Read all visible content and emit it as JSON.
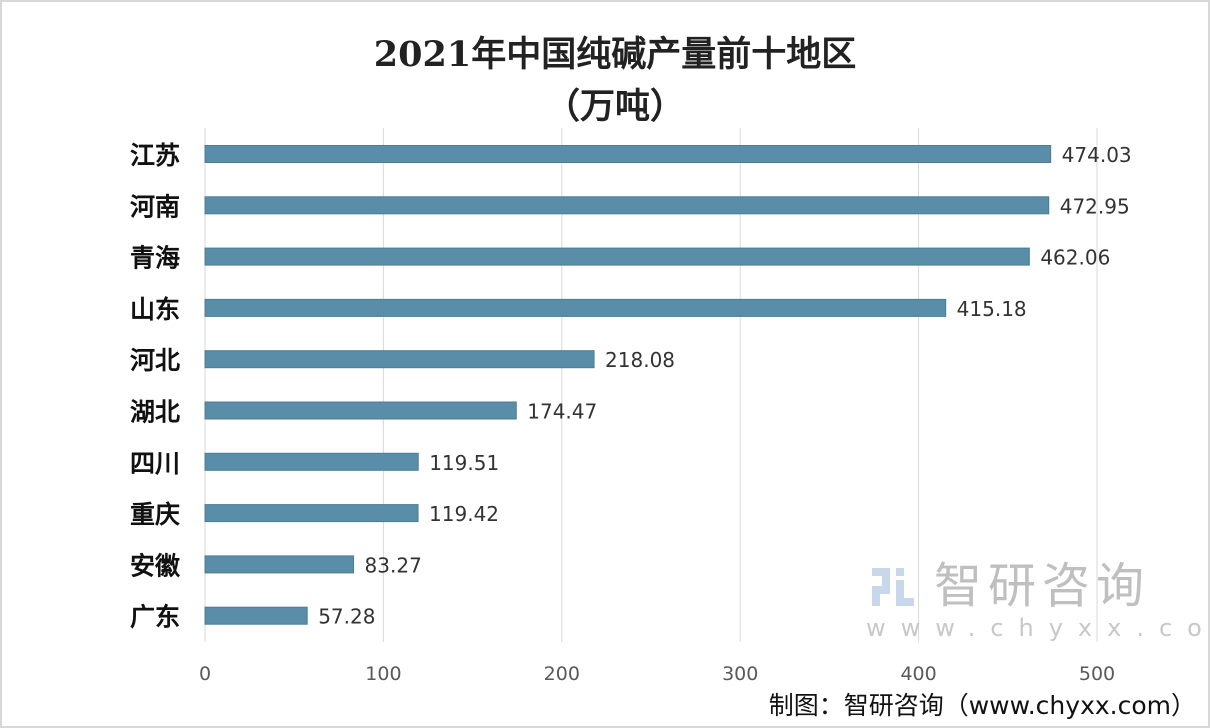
{
  "chart_data": {
    "type": "bar",
    "orientation": "horizontal",
    "title": "2021年中国纯碱产量前十地区",
    "subtitle": "（万吨）",
    "categories": [
      "江苏",
      "河南",
      "青海",
      "山东",
      "河北",
      "湖北",
      "四川",
      "重庆",
      "安徽",
      "广东"
    ],
    "values": [
      474.03,
      472.95,
      462.06,
      415.18,
      218.08,
      174.47,
      119.51,
      119.42,
      83.27,
      57.28
    ],
    "value_labels": [
      "474.03",
      "472.95",
      "462.06",
      "415.18",
      "218.08",
      "174.47",
      "119.51",
      "119.42",
      "83.27",
      "57.28"
    ],
    "xlim": [
      0,
      500
    ],
    "x_ticks": [
      "0",
      "100",
      "200",
      "300",
      "400",
      "500"
    ],
    "grid": "vertical",
    "bar_color": "#5a8da7"
  },
  "watermark": {
    "brand": "智研咨询",
    "url": "www.chyxx.com"
  },
  "source": "制图：智研咨询（www.chyxx.com）"
}
